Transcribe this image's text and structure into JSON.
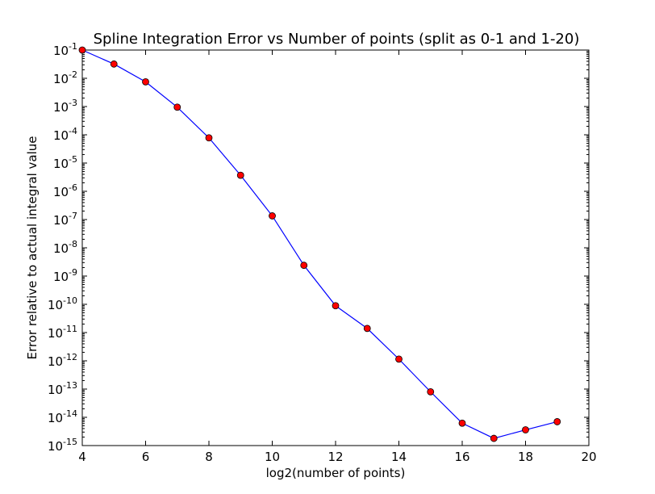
{
  "chart_data": {
    "type": "line",
    "title": "Spline Integration Error vs Number of points (split as 0-1 and 1-20)",
    "xlabel": "log2(number of points)",
    "ylabel": "Error relative to actual integral value",
    "xlim": [
      4,
      20
    ],
    "ylim": [
      1e-15,
      0.1
    ],
    "yscale": "log",
    "grid": false,
    "x_ticks": [
      "4",
      "6",
      "8",
      "10",
      "12",
      "14",
      "16",
      "18",
      "20"
    ],
    "y_tick_bases": [
      "10",
      "10",
      "10",
      "10",
      "10",
      "10",
      "10",
      "10",
      "10",
      "10",
      "10",
      "10",
      "10",
      "10",
      "10"
    ],
    "y_tick_exponents": [
      "-15",
      "-14",
      "-13",
      "-12",
      "-11",
      "-10",
      "-9",
      "-8",
      "-7",
      "-6",
      "-5",
      "-4",
      "-3",
      "-2",
      "-1"
    ],
    "series": [
      {
        "line_color": "#0000ff",
        "marker_color": "#ff0000",
        "x": [
          4,
          5,
          6,
          7,
          8,
          9,
          10,
          11,
          12,
          13,
          14,
          15,
          16,
          17,
          18,
          19
        ],
        "y": [
          0.1,
          0.032,
          0.0075,
          0.00095,
          7.8e-05,
          3.7e-06,
          1.35e-07,
          2.4e-09,
          8.9e-11,
          1.4e-11,
          1.15e-12,
          8e-14,
          6.2e-15,
          1.8e-15,
          3.6e-15,
          7e-15
        ]
      }
    ]
  }
}
